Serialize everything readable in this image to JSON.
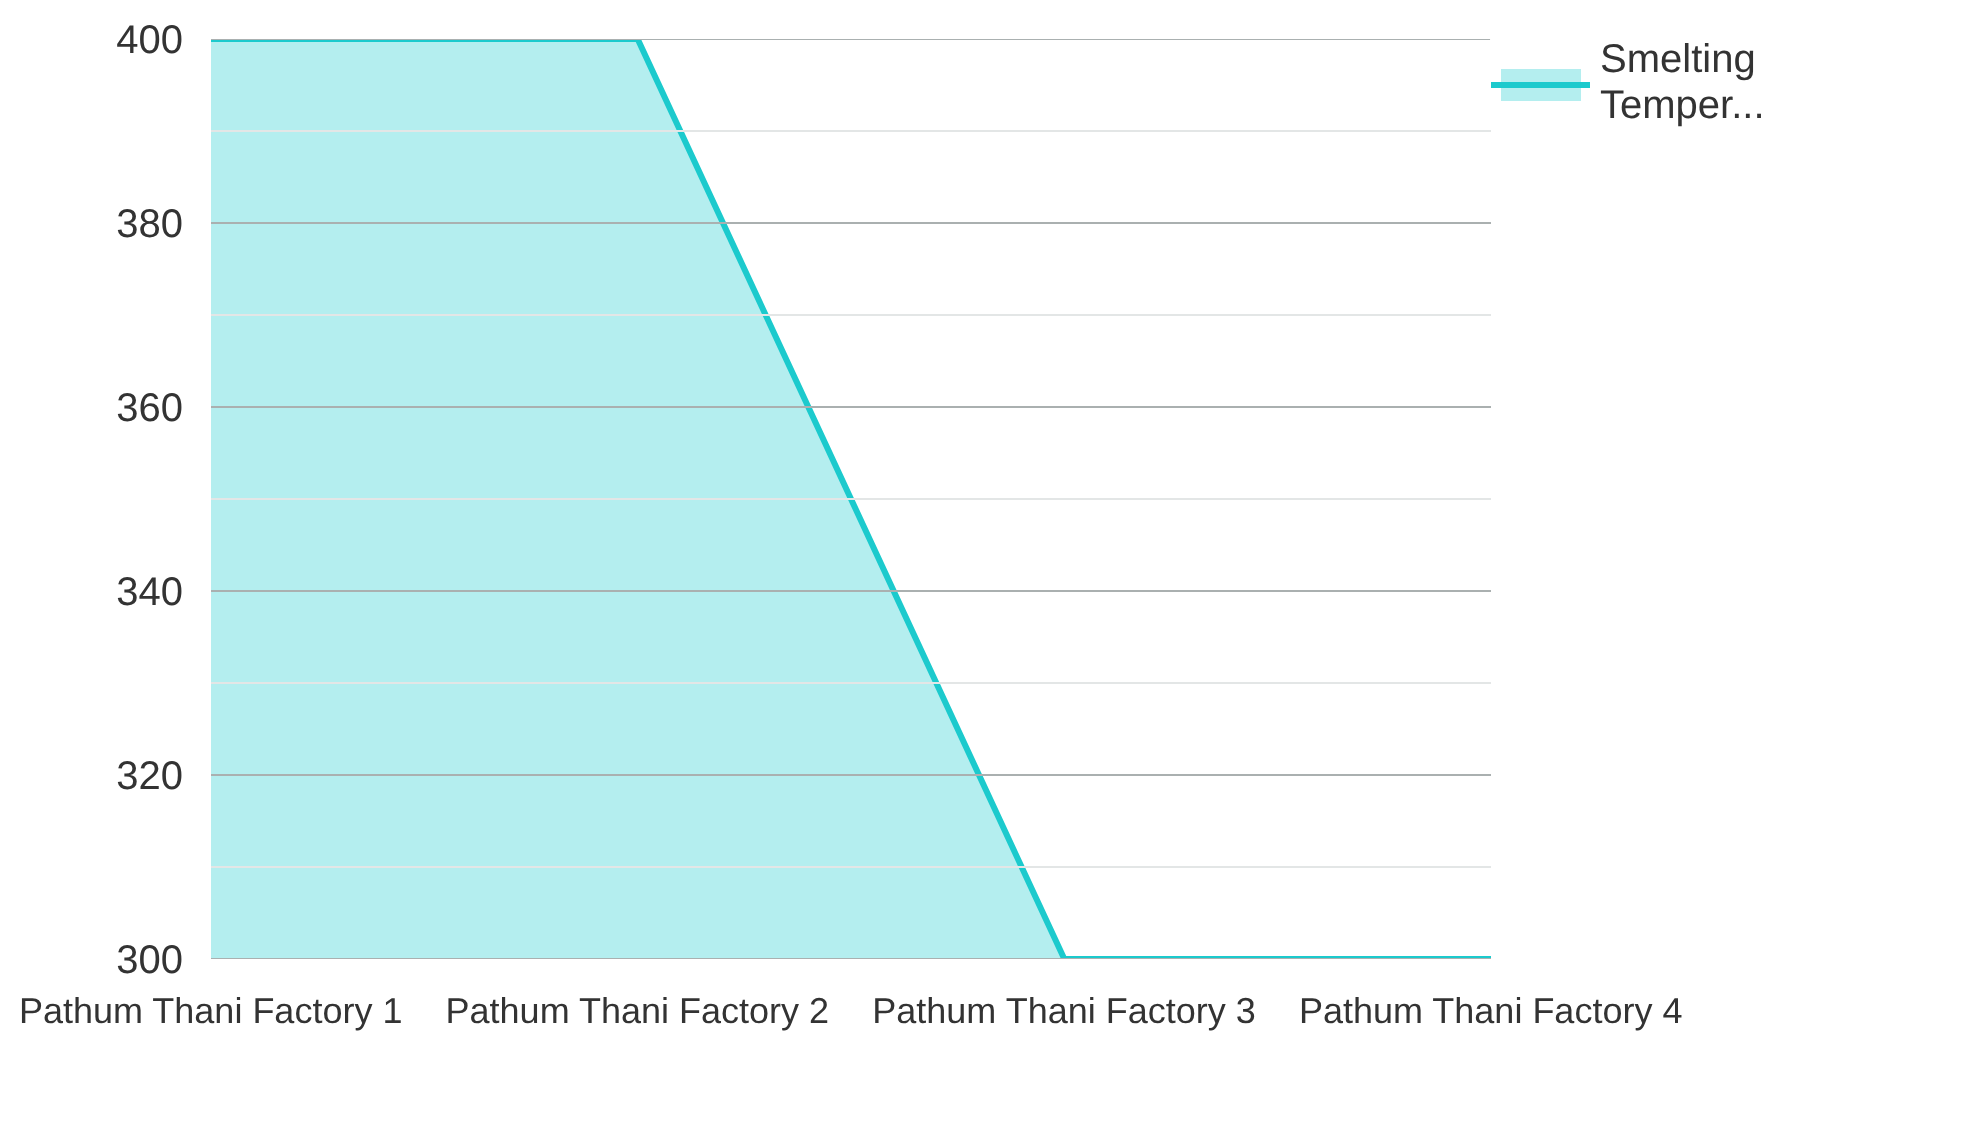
{
  "chart_data": {
    "type": "area",
    "categories": [
      "Pathum Thani Factory 1",
      "Pathum Thani Factory 2",
      "Pathum Thani Factory 3",
      "Pathum Thani Factory 4"
    ],
    "series": [
      {
        "name": "Smelting Temper...",
        "color": "#1ccacd",
        "values": [
          400,
          400,
          300,
          300
        ]
      }
    ],
    "ylim": [
      300,
      400
    ],
    "yticks": [
      300,
      {
        "value": 310,
        "label": null
      },
      320,
      {
        "value": 330,
        "label": null
      },
      340,
      {
        "value": 350,
        "label": null
      },
      360,
      {
        "value": 370,
        "label": null
      },
      380,
      {
        "value": 390,
        "label": null
      },
      400
    ],
    "grid": "y",
    "legend": "top right"
  }
}
